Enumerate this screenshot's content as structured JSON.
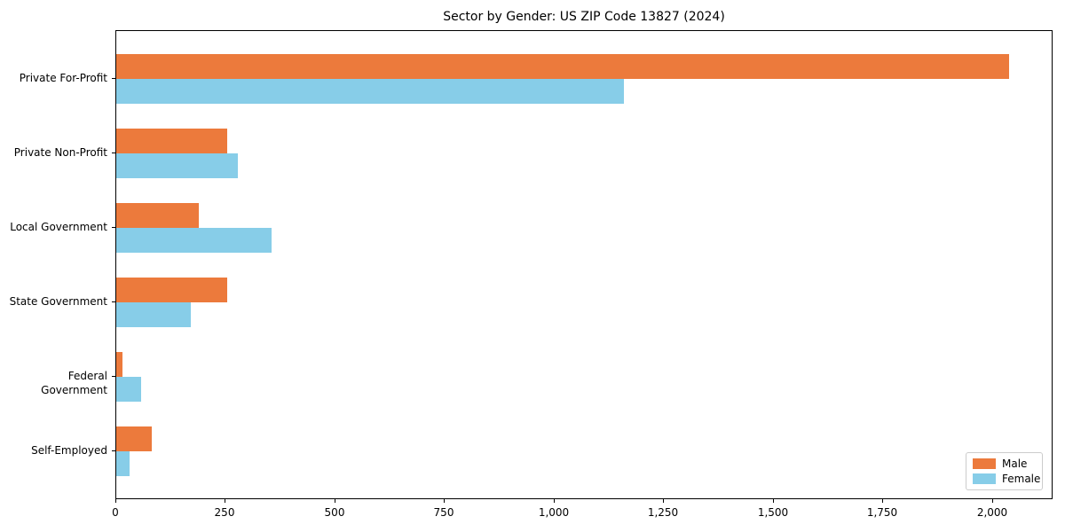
{
  "chart_data": {
    "type": "bar",
    "orientation": "horizontal",
    "title": "Sector by Gender: US ZIP Code 13827 (2024)",
    "xlabel": "",
    "ylabel": "",
    "categories": [
      "Private For-Profit",
      "Private Non-Profit",
      "Local Government",
      "State Government",
      "Federal Government",
      "Self-Employed"
    ],
    "series": [
      {
        "name": "Male",
        "color": "#EC7A3C",
        "values": [
          2036,
          253,
          188,
          253,
          15,
          80
        ]
      },
      {
        "name": "Female",
        "color": "#87CDE8",
        "values": [
          1158,
          277,
          354,
          170,
          56,
          31
        ]
      }
    ],
    "xlim": [
      0,
      2138
    ],
    "xticks": [
      0,
      250,
      500,
      750,
      1000,
      1250,
      1500,
      1750,
      2000
    ],
    "xtick_labels": [
      "0",
      "250",
      "500",
      "750",
      "1,000",
      "1,250",
      "1,500",
      "1,750",
      "2,000"
    ],
    "legend": {
      "position": "lower-right",
      "entries": [
        "Male",
        "Female"
      ]
    },
    "grid": false,
    "background": "#ffffff",
    "axis_color": "#000000"
  }
}
